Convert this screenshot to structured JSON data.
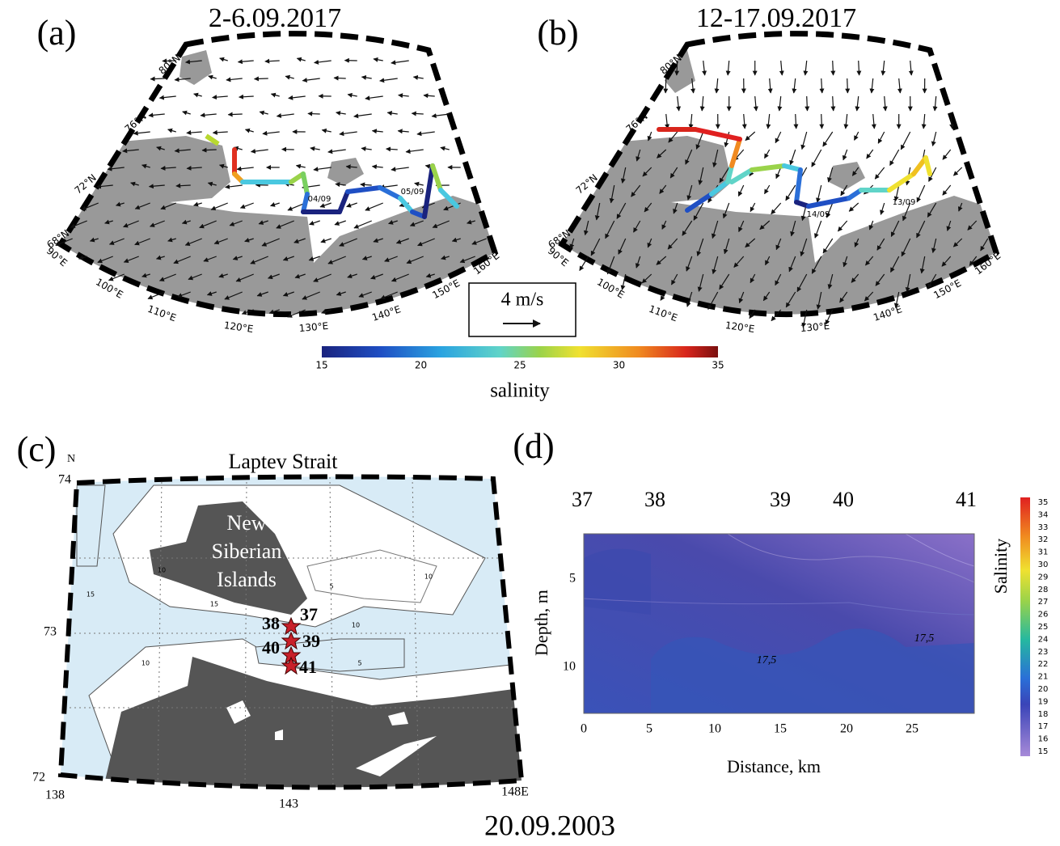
{
  "panel_a": {
    "label": "(a)",
    "title": "2-6.09.2017",
    "lat_labels": [
      "80°N",
      "76°N",
      "72°N",
      "68°N"
    ],
    "lon_labels": [
      "90°E",
      "100°E",
      "110°E",
      "120°E",
      "130°E",
      "140°E",
      "150°E",
      "160°E"
    ],
    "dates": [
      "04/09",
      "05/09"
    ]
  },
  "panel_b": {
    "label": "(b)",
    "title": "12-17.09.2017",
    "lat_labels": [
      "80°N",
      "76°N",
      "72°N",
      "68°N"
    ],
    "lon_labels": [
      "90°E",
      "100°E",
      "110°E",
      "120°E",
      "130°E",
      "140°E",
      "150°E",
      "160°E"
    ],
    "dates": [
      "14/09",
      "13/09"
    ]
  },
  "scale": "4 m/s",
  "colorbar": {
    "ticks": [
      "15",
      "20",
      "25",
      "30",
      "35"
    ],
    "label": "salinity"
  },
  "panel_c": {
    "label": "(c)",
    "north": "N",
    "title": "Laptev Strait",
    "lat_labels": [
      "74",
      "73",
      "72"
    ],
    "lon_labels": [
      "138",
      "143",
      "148E"
    ],
    "island": [
      "New",
      "Siberian",
      "Islands"
    ],
    "stations": [
      "37",
      "38",
      "39",
      "40",
      "41"
    ],
    "contour_labels": [
      "15",
      "10",
      "15",
      "5",
      "10",
      "10",
      "5",
      "10"
    ]
  },
  "panel_d": {
    "label": "(d)",
    "stations": [
      "37",
      "38",
      "39",
      "40",
      "41"
    ],
    "y_label": "Depth, m",
    "y_ticks": [
      "5",
      "10"
    ],
    "x_label": "Distance, km",
    "x_ticks": [
      "0",
      "5",
      "10",
      "15",
      "20",
      "25"
    ],
    "contour_labels": [
      "17,5",
      "17,5"
    ],
    "colorbar_label": "Salinity",
    "colorbar_ticks": [
      "35",
      "34",
      "33",
      "32",
      "31",
      "30",
      "29",
      "28",
      "27",
      "26",
      "25",
      "24",
      "23",
      "22",
      "21",
      "20",
      "19",
      "18",
      "17",
      "16",
      "15"
    ]
  },
  "footer": "20.09.2003"
}
